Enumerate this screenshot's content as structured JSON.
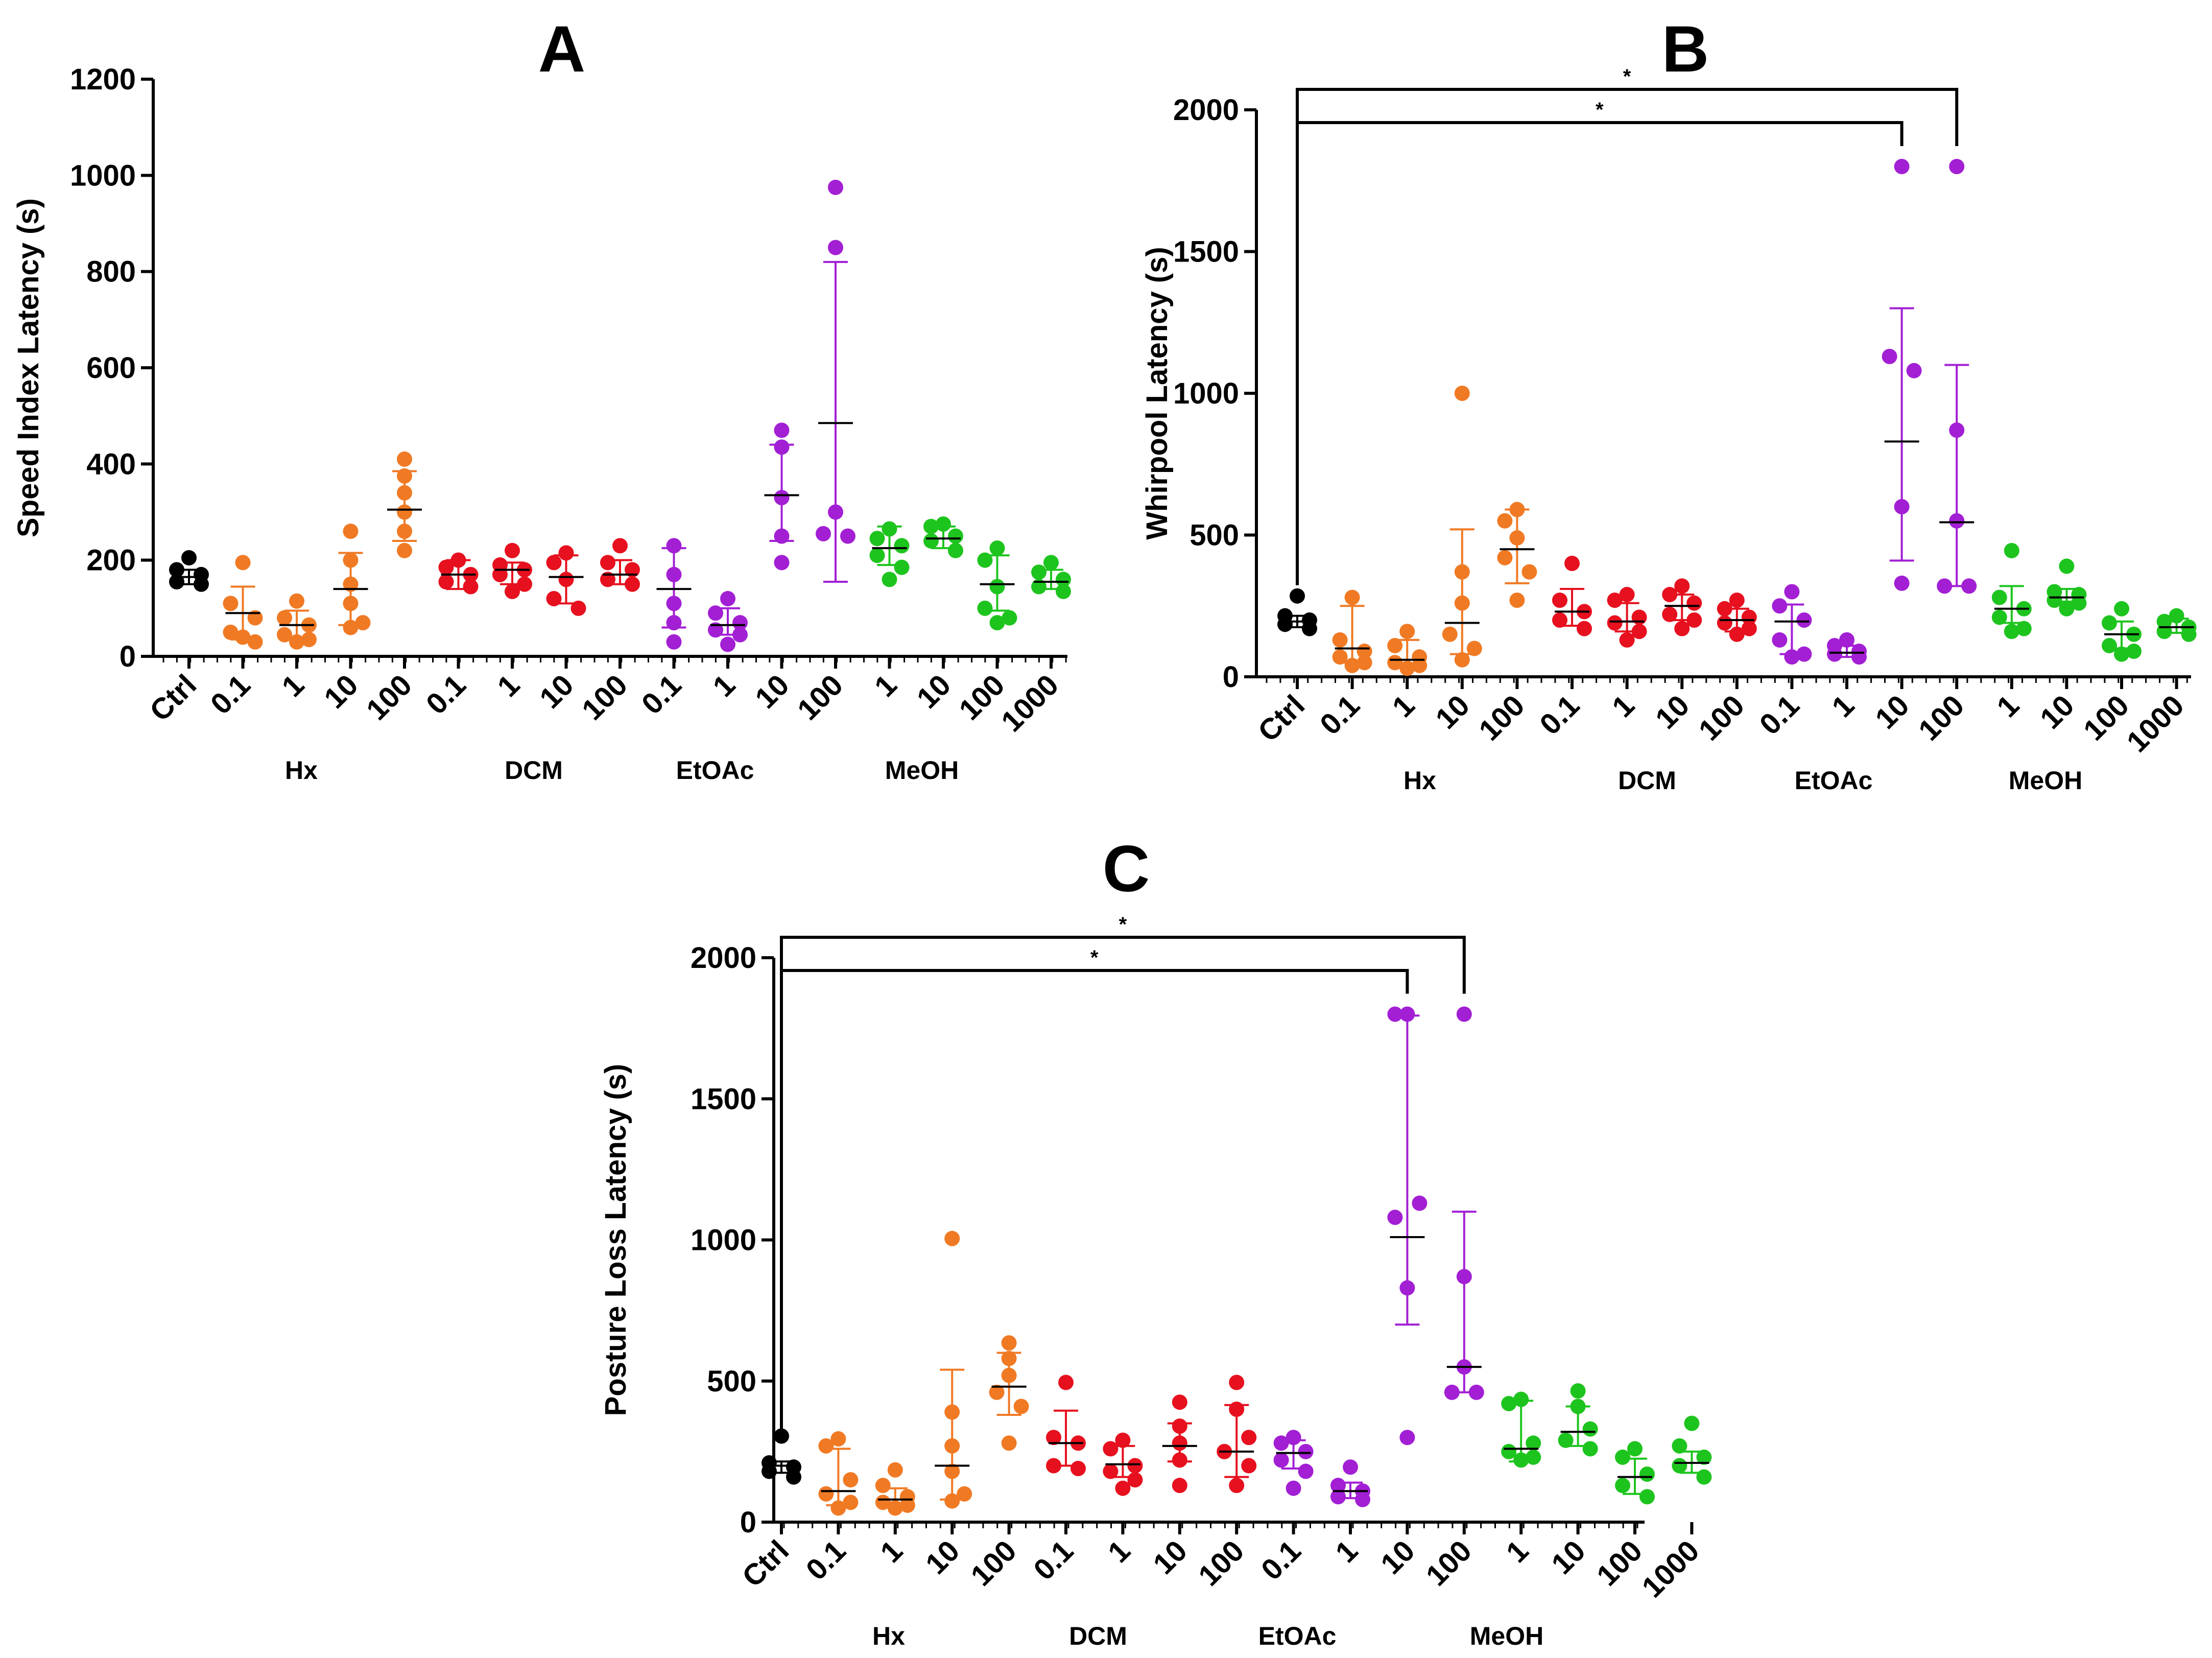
{
  "colors": {
    "Ctrl": "#000000",
    "Hx": "#f07a24",
    "DCM": "#e6101e",
    "EtOAc": "#a21fd4",
    "MeOH": "#1ec41e"
  },
  "chart_data": [
    {
      "type": "scatter",
      "panel_label": "A",
      "ylabel": "Speed Index Latency (s)",
      "ylim": [
        0,
        1200
      ],
      "yticks": [
        "0",
        "200",
        "400",
        "600",
        "800",
        "1000",
        "1200"
      ],
      "categories": [
        "Ctrl",
        "0.1",
        "1",
        "10",
        "100",
        "0.1",
        "1",
        "10",
        "100",
        "0.1",
        "1",
        "10",
        "100",
        "1",
        "10",
        "100",
        "1000"
      ],
      "groups": [
        "Ctrl",
        "Hx",
        "Hx",
        "Hx",
        "Hx",
        "DCM",
        "DCM",
        "DCM",
        "DCM",
        "EtOAc",
        "EtOAc",
        "EtOAc",
        "EtOAc",
        "MeOH",
        "MeOH",
        "MeOH",
        "MeOH"
      ],
      "group_labels": [
        "Hx",
        "DCM",
        "EtOAc",
        "MeOH"
      ],
      "series": [
        {
          "median": 165,
          "lo": 150,
          "hi": 180,
          "points": [
            205,
            180,
            170,
            155,
            150
          ]
        },
        {
          "median": 90,
          "lo": 35,
          "hi": 145,
          "points": [
            195,
            110,
            80,
            50,
            30,
            40
          ]
        },
        {
          "median": 65,
          "lo": 40,
          "hi": 95,
          "points": [
            115,
            80,
            65,
            45,
            35,
            30
          ]
        },
        {
          "median": 140,
          "lo": 65,
          "hi": 215,
          "points": [
            260,
            200,
            150,
            110,
            70,
            60
          ]
        },
        {
          "median": 305,
          "lo": 240,
          "hi": 385,
          "points": [
            410,
            375,
            340,
            300,
            260,
            220
          ]
        },
        {
          "median": 170,
          "lo": 140,
          "hi": 200,
          "points": [
            200,
            185,
            170,
            155,
            145
          ]
        },
        {
          "median": 180,
          "lo": 150,
          "hi": 195,
          "points": [
            220,
            190,
            180,
            170,
            150,
            135
          ]
        },
        {
          "median": 165,
          "lo": 110,
          "hi": 210,
          "points": [
            215,
            195,
            160,
            120,
            100
          ]
        },
        {
          "median": 170,
          "lo": 150,
          "hi": 200,
          "points": [
            230,
            195,
            180,
            160,
            150
          ]
        },
        {
          "median": 140,
          "lo": 60,
          "hi": 225,
          "points": [
            230,
            170,
            110,
            70,
            30
          ]
        },
        {
          "median": 65,
          "lo": 45,
          "hi": 100,
          "points": [
            120,
            90,
            70,
            55,
            45,
            25
          ]
        },
        {
          "median": 335,
          "lo": 240,
          "hi": 440,
          "points": [
            470,
            435,
            330,
            250,
            195
          ]
        },
        {
          "median": 485,
          "lo": 155,
          "hi": 820,
          "points": [
            975,
            850,
            300,
            255,
            250
          ]
        },
        {
          "median": 225,
          "lo": 190,
          "hi": 270,
          "points": [
            265,
            245,
            230,
            210,
            185,
            160
          ]
        },
        {
          "median": 245,
          "lo": 225,
          "hi": 270,
          "points": [
            275,
            270,
            250,
            240,
            220
          ]
        },
        {
          "median": 150,
          "lo": 95,
          "hi": 210,
          "points": [
            225,
            200,
            145,
            100,
            80,
            70
          ]
        },
        {
          "median": 155,
          "lo": 140,
          "hi": 180,
          "points": [
            195,
            175,
            160,
            145,
            135
          ]
        }
      ]
    },
    {
      "type": "scatter",
      "panel_label": "B",
      "ylabel": "Whirpool Latency (s)",
      "ylim": [
        0,
        2000
      ],
      "yticks": [
        "0",
        "500",
        "1000",
        "1500",
        "2000"
      ],
      "categories": [
        "Ctrl",
        "0.1",
        "1",
        "10",
        "100",
        "0.1",
        "1",
        "10",
        "100",
        "0.1",
        "1",
        "10",
        "100",
        "1",
        "10",
        "100",
        "1000"
      ],
      "groups": [
        "Ctrl",
        "Hx",
        "Hx",
        "Hx",
        "Hx",
        "DCM",
        "DCM",
        "DCM",
        "DCM",
        "EtOAc",
        "EtOAc",
        "EtOAc",
        "EtOAc",
        "MeOH",
        "MeOH",
        "MeOH",
        "MeOH"
      ],
      "group_labels": [
        "Hx",
        "DCM",
        "EtOAc",
        "MeOH"
      ],
      "significance": [
        {
          "from": 0,
          "to": 12,
          "label": "*"
        },
        {
          "from": 0,
          "to": 11,
          "label": "*"
        }
      ],
      "series": [
        {
          "median": 195,
          "lo": 175,
          "hi": 215,
          "points": [
            285,
            215,
            200,
            185,
            170
          ]
        },
        {
          "median": 100,
          "lo": 50,
          "hi": 250,
          "points": [
            280,
            130,
            90,
            70,
            50,
            40
          ]
        },
        {
          "median": 60,
          "lo": 40,
          "hi": 130,
          "points": [
            160,
            110,
            70,
            50,
            40,
            30
          ]
        },
        {
          "median": 190,
          "lo": 80,
          "hi": 520,
          "points": [
            1000,
            370,
            260,
            150,
            100,
            60
          ]
        },
        {
          "median": 450,
          "lo": 330,
          "hi": 590,
          "points": [
            590,
            550,
            490,
            420,
            370,
            270
          ]
        },
        {
          "median": 230,
          "lo": 180,
          "hi": 310,
          "points": [
            400,
            270,
            230,
            200,
            170
          ]
        },
        {
          "median": 195,
          "lo": 160,
          "hi": 260,
          "points": [
            290,
            270,
            210,
            190,
            160,
            130
          ]
        },
        {
          "median": 250,
          "lo": 200,
          "hi": 290,
          "points": [
            320,
            290,
            260,
            220,
            200,
            170
          ]
        },
        {
          "median": 200,
          "lo": 160,
          "hi": 240,
          "points": [
            270,
            240,
            210,
            190,
            170,
            150
          ]
        },
        {
          "median": 195,
          "lo": 80,
          "hi": 255,
          "points": [
            300,
            250,
            200,
            130,
            80,
            70
          ]
        },
        {
          "median": 85,
          "lo": 70,
          "hi": 110,
          "points": [
            130,
            110,
            90,
            80,
            70
          ]
        },
        {
          "median": 830,
          "lo": 410,
          "hi": 1300,
          "points": [
            1800,
            1130,
            1080,
            600,
            330
          ]
        },
        {
          "median": 545,
          "lo": 320,
          "hi": 1100,
          "points": [
            1800,
            870,
            550,
            320,
            320
          ]
        },
        {
          "median": 240,
          "lo": 190,
          "hi": 320,
          "points": [
            445,
            280,
            240,
            210,
            170,
            160
          ]
        },
        {
          "median": 280,
          "lo": 265,
          "hi": 310,
          "points": [
            390,
            300,
            290,
            270,
            260,
            240
          ]
        },
        {
          "median": 150,
          "lo": 100,
          "hi": 195,
          "points": [
            240,
            190,
            150,
            110,
            90,
            80
          ]
        },
        {
          "median": 175,
          "lo": 155,
          "hi": 205,
          "points": [
            215,
            195,
            175,
            160,
            150
          ]
        }
      ]
    },
    {
      "type": "scatter",
      "panel_label": "C",
      "ylabel": "Posture Loss Latency (s)",
      "ylim": [
        0,
        2000
      ],
      "yticks": [
        "0",
        "500",
        "1000",
        "1500",
        "2000"
      ],
      "categories": [
        "Ctrl",
        "0.1",
        "1",
        "10",
        "100",
        "0.1",
        "1",
        "10",
        "100",
        "0.1",
        "1",
        "10",
        "100",
        "1",
        "10",
        "100",
        "1000"
      ],
      "groups": [
        "Ctrl",
        "Hx",
        "Hx",
        "Hx",
        "Hx",
        "DCM",
        "DCM",
        "DCM",
        "DCM",
        "EtOAc",
        "EtOAc",
        "EtOAc",
        "EtOAc",
        "MeOH",
        "MeOH",
        "MeOH",
        "MeOH"
      ],
      "group_labels": [
        "Hx",
        "DCM",
        "EtOAc",
        "MeOH"
      ],
      "significance": [
        {
          "from": 0,
          "to": 12,
          "label": "*"
        },
        {
          "from": 0,
          "to": 11,
          "label": "*"
        }
      ],
      "series": [
        {
          "median": 200,
          "lo": 175,
          "hi": 215,
          "points": [
            305,
            210,
            195,
            180,
            160
          ]
        },
        {
          "median": 110,
          "lo": 60,
          "hi": 260,
          "points": [
            295,
            270,
            150,
            100,
            70,
            50
          ]
        },
        {
          "median": 80,
          "lo": 60,
          "hi": 120,
          "points": [
            185,
            130,
            90,
            70,
            60,
            50
          ]
        },
        {
          "median": 200,
          "lo": 80,
          "hi": 540,
          "points": [
            1005,
            390,
            270,
            180,
            100,
            75
          ]
        },
        {
          "median": 480,
          "lo": 380,
          "hi": 600,
          "points": [
            635,
            580,
            520,
            460,
            410,
            280
          ]
        },
        {
          "median": 280,
          "lo": 200,
          "hi": 395,
          "points": [
            495,
            300,
            280,
            200,
            190
          ]
        },
        {
          "median": 205,
          "lo": 160,
          "hi": 270,
          "points": [
            290,
            260,
            200,
            180,
            150,
            120
          ]
        },
        {
          "median": 270,
          "lo": 215,
          "hi": 350,
          "points": [
            425,
            340,
            280,
            220,
            130
          ]
        },
        {
          "median": 250,
          "lo": 160,
          "hi": 415,
          "points": [
            495,
            400,
            300,
            250,
            200,
            130
          ]
        },
        {
          "median": 245,
          "lo": 190,
          "hi": 290,
          "points": [
            300,
            280,
            250,
            220,
            180,
            120
          ]
        },
        {
          "median": 110,
          "lo": 85,
          "hi": 140,
          "points": [
            195,
            130,
            110,
            90,
            80
          ]
        },
        {
          "median": 1010,
          "lo": 700,
          "hi": 1795,
          "points": [
            1800,
            1800,
            1130,
            1080,
            830,
            300
          ]
        },
        {
          "median": 550,
          "lo": 460,
          "hi": 1100,
          "points": [
            1800,
            870,
            550,
            460,
            460
          ]
        },
        {
          "median": 260,
          "lo": 215,
          "hi": 430,
          "points": [
            435,
            420,
            280,
            250,
            230,
            220
          ]
        },
        {
          "median": 320,
          "lo": 270,
          "hi": 410,
          "points": [
            465,
            410,
            330,
            290,
            260
          ]
        },
        {
          "median": 160,
          "lo": 100,
          "hi": 225,
          "points": [
            260,
            230,
            170,
            130,
            90
          ]
        },
        {
          "median": 210,
          "lo": 175,
          "hi": 250,
          "points": [
            350,
            270,
            230,
            200,
            160
          ]
        }
      ]
    }
  ]
}
